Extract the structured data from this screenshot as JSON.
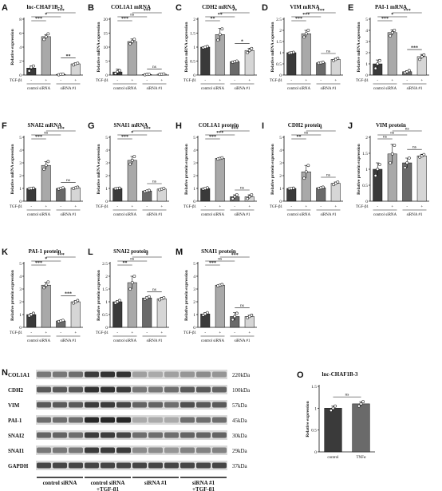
{
  "figure": {
    "treatment_label": "TGF-β1",
    "minus": "-",
    "plus": "+",
    "group_labels": [
      "control siRNA",
      "siRNA #1"
    ],
    "bar_colors": [
      "#3a3a3a",
      "#a9a9a9",
      "#6a6a6a",
      "#d6d6d6"
    ]
  },
  "chart_data": [
    {
      "panel": "A",
      "type": "bar",
      "title": "lnc-CHAF1B-3",
      "ylabel": "Relative expression",
      "ylim": [
        0,
        8
      ],
      "ticks": [
        0,
        2,
        4,
        6,
        8
      ],
      "values": [
        1.0,
        5.5,
        0.1,
        1.6
      ],
      "points": [
        [
          0.6,
          1.1,
          1.3
        ],
        [
          5.1,
          5.5,
          5.9
        ],
        [
          0.05,
          0.1,
          0.15
        ],
        [
          1.45,
          1.6,
          1.7
        ]
      ],
      "errors": [
        0.3,
        0.3,
        0.05,
        0.15
      ],
      "has_treatment": true,
      "sig": [
        {
          "a": 0,
          "b": 1,
          "t": "***"
        },
        {
          "a": 0,
          "b": 2,
          "t": "*"
        },
        {
          "a": 1,
          "b": 3,
          "t": "***"
        },
        {
          "a": 2,
          "b": 3,
          "t": "**"
        }
      ]
    },
    {
      "panel": "B",
      "type": "bar",
      "title": "COL1A1 mRNA",
      "ylabel": "Relative mRNA expression",
      "ylim": [
        0,
        20
      ],
      "ticks": [
        0,
        5,
        10,
        15,
        20
      ],
      "values": [
        1.1,
        12.0,
        0.2,
        0.3
      ],
      "points": [
        [
          0.6,
          1.2,
          1.6
        ],
        [
          11.2,
          12.0,
          12.8
        ],
        [
          0.1,
          0.2,
          0.3
        ],
        [
          0.2,
          0.3,
          0.4
        ]
      ],
      "errors": [
        1.0,
        0.9,
        0.1,
        0.1
      ],
      "has_treatment": true,
      "sig": [
        {
          "a": 0,
          "b": 1,
          "t": "***"
        },
        {
          "a": 2,
          "b": 3,
          "t": "ns"
        },
        {
          "a": 0,
          "b": 2,
          "t": "ns"
        },
        {
          "a": 1,
          "b": 3,
          "t": "***"
        }
      ]
    },
    {
      "panel": "C",
      "type": "bar",
      "title": "CDH2 mRNA",
      "ylabel": "Relative mRNA expression",
      "ylim": [
        0,
        2.0
      ],
      "ticks": [
        0.0,
        0.5,
        1.0,
        1.5,
        2.0
      ],
      "values": [
        1.0,
        1.45,
        0.48,
        0.88
      ],
      "points": [
        [
          0.98,
          1.0,
          1.02
        ],
        [
          1.25,
          1.45,
          1.65
        ],
        [
          0.46,
          0.48,
          0.5
        ],
        [
          0.8,
          0.88,
          0.95
        ]
      ],
      "errors": [
        0.02,
        0.22,
        0.02,
        0.08
      ],
      "has_treatment": true,
      "sig": [
        {
          "a": 0,
          "b": 1,
          "t": "**"
        },
        {
          "a": 2,
          "b": 3,
          "t": "*"
        },
        {
          "a": 0,
          "b": 2,
          "t": "**"
        },
        {
          "a": 1,
          "b": 3,
          "t": "**"
        }
      ]
    },
    {
      "panel": "D",
      "type": "bar",
      "title": "VIM mRNA",
      "ylabel": "Relative mRNA expression",
      "ylim": [
        0,
        2.5
      ],
      "ticks": [
        0.0,
        0.5,
        1.0,
        1.5,
        2.0,
        2.5
      ],
      "values": [
        1.0,
        1.85,
        0.55,
        0.7
      ],
      "points": [
        [
          0.98,
          1.0,
          1.02
        ],
        [
          1.7,
          1.85,
          2.0
        ],
        [
          0.53,
          0.55,
          0.57
        ],
        [
          0.65,
          0.7,
          0.75
        ]
      ],
      "errors": [
        0.02,
        0.15,
        0.02,
        0.05
      ],
      "has_treatment": true,
      "sig": [
        {
          "a": 0,
          "b": 1,
          "t": "***"
        },
        {
          "a": 2,
          "b": 3,
          "t": "ns"
        },
        {
          "a": 0,
          "b": 2,
          "t": "***"
        },
        {
          "a": 1,
          "b": 3,
          "t": "***"
        }
      ]
    },
    {
      "panel": "E",
      "type": "bar",
      "title": "PAI-1 mRNA",
      "ylabel": "Relative mRNA expression",
      "ylim": [
        0,
        5
      ],
      "ticks": [
        0,
        1,
        2,
        3,
        4,
        5
      ],
      "values": [
        1.0,
        3.8,
        0.3,
        1.65
      ],
      "points": [
        [
          0.6,
          1.0,
          1.3
        ],
        [
          3.5,
          3.8,
          4.0
        ],
        [
          0.2,
          0.3,
          0.4
        ],
        [
          1.4,
          1.65,
          1.8
        ]
      ],
      "errors": [
        0.35,
        0.25,
        0.1,
        0.2
      ],
      "has_treatment": true,
      "sig": [
        {
          "a": 0,
          "b": 1,
          "t": "***"
        },
        {
          "a": 2,
          "b": 3,
          "t": "***"
        },
        {
          "a": 0,
          "b": 2,
          "t": "*"
        },
        {
          "a": 1,
          "b": 3,
          "t": "***"
        }
      ]
    },
    {
      "panel": "F",
      "type": "bar",
      "title": "SNAI2 mRNA",
      "ylabel": "Relative mRNA expression",
      "ylim": [
        0,
        5
      ],
      "ticks": [
        0,
        1,
        2,
        3,
        4,
        5
      ],
      "values": [
        1.0,
        2.8,
        1.0,
        1.05
      ],
      "points": [
        [
          0.98,
          1.0,
          1.02
        ],
        [
          2.5,
          2.8,
          3.1
        ],
        [
          0.95,
          1.0,
          1.05
        ],
        [
          1.0,
          1.05,
          1.1
        ]
      ],
      "errors": [
        0.02,
        0.3,
        0.05,
        0.05
      ],
      "has_treatment": true,
      "sig": [
        {
          "a": 0,
          "b": 1,
          "t": "***"
        },
        {
          "a": 2,
          "b": 3,
          "t": "ns"
        },
        {
          "a": 0,
          "b": 2,
          "t": "ns"
        },
        {
          "a": 1,
          "b": 3,
          "t": "***"
        }
      ]
    },
    {
      "panel": "G",
      "type": "bar",
      "title": "SNAI1 mRNA",
      "ylabel": "Relative mRNA expression",
      "ylim": [
        0,
        5
      ],
      "ticks": [
        0,
        1,
        2,
        3,
        4,
        5
      ],
      "values": [
        1.0,
        3.2,
        0.8,
        0.95
      ],
      "points": [
        [
          0.98,
          1.0,
          1.02
        ],
        [
          2.9,
          3.2,
          3.5
        ],
        [
          0.75,
          0.8,
          0.85
        ],
        [
          0.9,
          0.95,
          1.0
        ]
      ],
      "errors": [
        0.02,
        0.3,
        0.05,
        0.05
      ],
      "has_treatment": true,
      "sig": [
        {
          "a": 0,
          "b": 1,
          "t": "***"
        },
        {
          "a": 2,
          "b": 3,
          "t": "ns"
        },
        {
          "a": 0,
          "b": 2,
          "t": "*"
        },
        {
          "a": 1,
          "b": 3,
          "t": "***"
        }
      ]
    },
    {
      "panel": "H",
      "type": "bar",
      "title": "COL1A1 protein",
      "ylabel": "Relative protein expression",
      "ylim": [
        0,
        5
      ],
      "ticks": [
        0,
        1,
        2,
        3,
        4,
        5
      ],
      "values": [
        1.0,
        3.35,
        0.35,
        0.35
      ],
      "points": [
        [
          0.95,
          1.0,
          1.05
        ],
        [
          3.3,
          3.35,
          3.4
        ],
        [
          0.2,
          0.35,
          0.5
        ],
        [
          0.2,
          0.35,
          0.5
        ]
      ],
      "errors": [
        0.05,
        0.05,
        0.15,
        0.15
      ],
      "has_treatment": true,
      "sig": [
        {
          "a": 0,
          "b": 1,
          "t": "***"
        },
        {
          "a": 2,
          "b": 3,
          "t": "ns"
        },
        {
          "a": 0,
          "b": 2,
          "t": "***"
        },
        {
          "a": 1,
          "b": 3,
          "t": "***"
        }
      ]
    },
    {
      "panel": "I",
      "type": "bar",
      "title": "CDH2 protein",
      "ylabel": "Relative protein expression",
      "ylim": [
        0,
        5
      ],
      "ticks": [
        0,
        1,
        2,
        3,
        4,
        5
      ],
      "values": [
        1.0,
        2.3,
        1.05,
        1.4
      ],
      "points": [
        [
          0.98,
          1.0,
          1.02
        ],
        [
          1.8,
          2.3,
          2.8
        ],
        [
          1.0,
          1.05,
          1.1
        ],
        [
          1.3,
          1.4,
          1.5
        ]
      ],
      "errors": [
        0.02,
        0.5,
        0.05,
        0.1
      ],
      "has_treatment": true,
      "sig": [
        {
          "a": 0,
          "b": 1,
          "t": "**"
        },
        {
          "a": 2,
          "b": 3,
          "t": "ns"
        },
        {
          "a": 0,
          "b": 2,
          "t": "ns"
        },
        {
          "a": 1,
          "b": 3,
          "t": "*"
        }
      ]
    },
    {
      "panel": "J",
      "type": "bar",
      "title": "VIM protein",
      "ylabel": "Relative protein expression",
      "ylim": [
        0,
        2.0
      ],
      "ticks": [
        0.0,
        0.5,
        1.0,
        1.5,
        2.0
      ],
      "values": [
        1.0,
        1.48,
        1.2,
        1.42
      ],
      "points": [
        [
          0.8,
          1.0,
          1.15
        ],
        [
          1.2,
          1.48,
          1.75
        ],
        [
          1.05,
          1.2,
          1.35
        ],
        [
          1.38,
          1.42,
          1.46
        ]
      ],
      "errors": [
        0.2,
        0.3,
        0.15,
        0.05
      ],
      "has_treatment": true,
      "sig": [
        {
          "a": 0,
          "b": 1,
          "t": "ns"
        },
        {
          "a": 2,
          "b": 3,
          "t": "ns"
        },
        {
          "a": 0,
          "b": 2,
          "t": "ns"
        },
        {
          "a": 1,
          "b": 3,
          "t": "ns"
        }
      ]
    },
    {
      "panel": "K",
      "type": "bar",
      "title": "PAI-1 protein",
      "ylabel": "Relative protein expression",
      "ylim": [
        0,
        5
      ],
      "ticks": [
        0,
        1,
        2,
        3,
        4,
        5
      ],
      "values": [
        1.0,
        3.3,
        0.5,
        2.0
      ],
      "points": [
        [
          0.9,
          1.0,
          1.1
        ],
        [
          3.1,
          3.3,
          3.55
        ],
        [
          0.45,
          0.5,
          0.55
        ],
        [
          1.9,
          2.0,
          2.1
        ]
      ],
      "errors": [
        0.1,
        0.22,
        0.05,
        0.1
      ],
      "has_treatment": true,
      "sig": [
        {
          "a": 0,
          "b": 1,
          "t": "***"
        },
        {
          "a": 2,
          "b": 3,
          "t": "***"
        },
        {
          "a": 0,
          "b": 2,
          "t": "*"
        },
        {
          "a": 1,
          "b": 3,
          "t": "***"
        }
      ]
    },
    {
      "panel": "L",
      "type": "bar",
      "title": "SNAI2 protein",
      "ylabel": "Relative protein expression",
      "ylim": [
        0,
        2.5
      ],
      "ticks": [
        0.0,
        0.5,
        1.0,
        1.5,
        2.0,
        2.5
      ],
      "values": [
        1.0,
        1.75,
        1.15,
        1.12
      ],
      "points": [
        [
          0.95,
          1.0,
          1.05
        ],
        [
          1.5,
          1.75,
          2.0
        ],
        [
          1.1,
          1.15,
          1.2
        ],
        [
          1.08,
          1.12,
          1.16
        ]
      ],
      "errors": [
        0.05,
        0.25,
        0.05,
        0.05
      ],
      "has_treatment": true,
      "sig": [
        {
          "a": 0,
          "b": 1,
          "t": "**"
        },
        {
          "a": 2,
          "b": 3,
          "t": "ns"
        },
        {
          "a": 0,
          "b": 2,
          "t": "ns"
        },
        {
          "a": 1,
          "b": 3,
          "t": "*"
        }
      ]
    },
    {
      "panel": "M",
      "type": "bar",
      "title": "SNAI1 protein",
      "ylabel": "Relative protein expression",
      "ylim": [
        0,
        5
      ],
      "ticks": [
        0,
        1,
        2,
        3,
        4,
        5
      ],
      "values": [
        1.05,
        3.3,
        0.85,
        0.85
      ],
      "points": [
        [
          0.95,
          1.05,
          1.15
        ],
        [
          3.25,
          3.3,
          3.35
        ],
        [
          0.6,
          0.85,
          1.1
        ],
        [
          0.75,
          0.85,
          0.95
        ]
      ],
      "errors": [
        0.1,
        0.05,
        0.3,
        0.1
      ],
      "has_treatment": true,
      "sig": [
        {
          "a": 0,
          "b": 1,
          "t": "***"
        },
        {
          "a": 2,
          "b": 3,
          "t": "ns"
        },
        {
          "a": 0,
          "b": 2,
          "t": "ns"
        },
        {
          "a": 1,
          "b": 3,
          "t": "***"
        }
      ]
    },
    {
      "panel": "O",
      "type": "bar",
      "title": "lnc-CHAF1B-3",
      "ylabel": "Relative expression",
      "ylim": [
        0,
        1.5
      ],
      "ticks": [
        0.0,
        0.5,
        1.0,
        1.5
      ],
      "categories": [
        "control",
        "TNFα"
      ],
      "values": [
        1.0,
        1.1
      ],
      "points": [
        [
          0.95,
          1.0,
          1.05
        ],
        [
          1.05,
          1.1,
          1.15
        ]
      ],
      "errors": [
        0.05,
        0.05
      ],
      "has_treatment": false,
      "sig": [
        {
          "a": 0,
          "b": 1,
          "t": "ns"
        }
      ]
    }
  ],
  "western_blot": {
    "panel": "N",
    "proteins": [
      "COL1A1",
      "CDH2",
      "VIM",
      "PAI-1",
      "SNAI2",
      "SNAI1",
      "GAPDH"
    ],
    "sizes": [
      "220kDa",
      "100kDa",
      "57kDa",
      "45kDa",
      "30kDa",
      "29kDa",
      "37kDa"
    ],
    "groups": [
      "control siRNA",
      "control siRNA +TGF-β1",
      "siRNA #1",
      "siRNA #1 +TGF-β1"
    ],
    "groups_line1": [
      "control siRNA",
      "control siRNA",
      "siRNA #1",
      "siRNA #1"
    ],
    "groups_line2": [
      "",
      "+TGF-β1",
      "",
      "+TGF-β1"
    ],
    "intensity": [
      [
        0.55,
        0.55,
        0.6,
        0.85,
        0.9,
        0.9,
        0.35,
        0.3,
        0.35,
        0.4,
        0.45,
        0.4
      ],
      [
        0.7,
        0.7,
        0.7,
        0.9,
        0.9,
        0.85,
        0.55,
        0.55,
        0.6,
        0.7,
        0.7,
        0.65
      ],
      [
        0.7,
        0.7,
        0.7,
        0.85,
        0.85,
        0.8,
        0.65,
        0.65,
        0.6,
        0.75,
        0.7,
        0.7
      ],
      [
        0.6,
        0.6,
        0.6,
        0.95,
        0.95,
        0.95,
        0.3,
        0.3,
        0.3,
        0.6,
        0.6,
        0.6
      ],
      [
        0.65,
        0.65,
        0.6,
        0.85,
        0.85,
        0.8,
        0.6,
        0.6,
        0.6,
        0.65,
        0.65,
        0.65
      ],
      [
        0.55,
        0.55,
        0.55,
        0.85,
        0.85,
        0.85,
        0.45,
        0.45,
        0.4,
        0.5,
        0.5,
        0.5
      ],
      [
        0.8,
        0.8,
        0.8,
        0.8,
        0.8,
        0.8,
        0.8,
        0.8,
        0.8,
        0.8,
        0.8,
        0.8
      ]
    ]
  }
}
